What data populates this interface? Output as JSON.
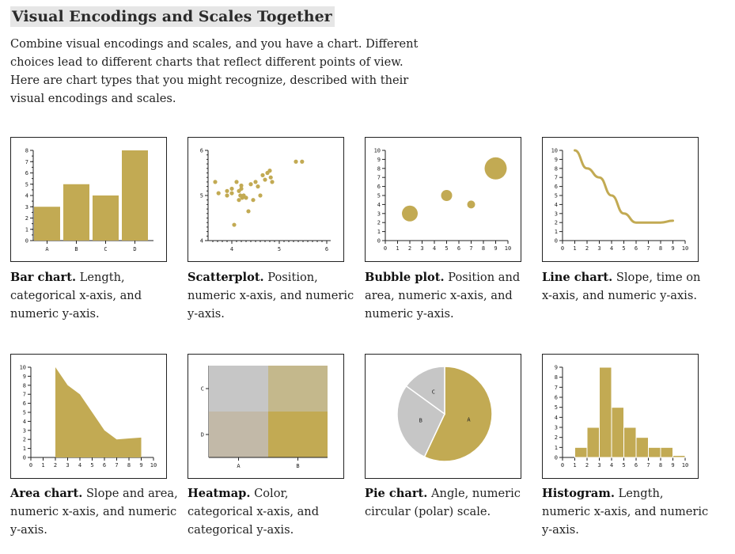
{
  "page": {
    "title": "Visual Encodings and Scales Together",
    "intro": "Combine visual encodings and scales, and you have a chart. Different choices lead to different charts that reflect different points of view. Here are chart types that you might recognize, described with their visual encodings and scales."
  },
  "colors": {
    "mark": "#c2aa53",
    "axis": "#222222",
    "heat_light": "#c6c6c6"
  },
  "cards": [
    {
      "name": "Bar chart.",
      "desc": "Length, categorical x-axis, and numeric y-axis."
    },
    {
      "name": "Scatterplot.",
      "desc": "Position, numeric x-axis, and numeric y-axis."
    },
    {
      "name": "Bubble plot.",
      "desc": "Position and area, numeric x-axis, and numeric y-axis."
    },
    {
      "name": "Line chart.",
      "desc": "Slope, time on x-axis, and numeric y-axis."
    },
    {
      "name": "Area chart.",
      "desc": "Slope and area, numeric x-axis, and numeric y-axis."
    },
    {
      "name": "Heatmap.",
      "desc": "Color, categorical x-axis, and categorical y-axis."
    },
    {
      "name": "Pie chart.",
      "desc": "Angle, numeric circular (polar) scale."
    },
    {
      "name": "Histogram.",
      "desc": "Length, numeric x-axis, and numeric y-axis."
    }
  ],
  "chart_data": [
    {
      "type": "bar",
      "categories": [
        "A",
        "B",
        "C",
        "D"
      ],
      "values": [
        3,
        5,
        4,
        8
      ],
      "ylim": [
        0,
        8
      ]
    },
    {
      "type": "scatter",
      "xlim": [
        3.6,
        6
      ],
      "ylim": [
        4,
        6
      ],
      "points": [
        [
          3.65,
          5.3
        ],
        [
          3.72,
          5.05
        ],
        [
          3.9,
          5.1
        ],
        [
          3.9,
          5.0
        ],
        [
          4.0,
          5.15
        ],
        [
          4.0,
          5.05
        ],
        [
          4.05,
          4.35
        ],
        [
          4.1,
          5.3
        ],
        [
          4.15,
          4.9
        ],
        [
          4.15,
          5.1
        ],
        [
          4.18,
          5.0
        ],
        [
          4.2,
          5.22
        ],
        [
          4.2,
          5.15
        ],
        [
          4.22,
          4.95
        ],
        [
          4.25,
          5.0
        ],
        [
          4.3,
          4.95
        ],
        [
          4.35,
          4.65
        ],
        [
          4.4,
          5.25
        ],
        [
          4.45,
          4.9
        ],
        [
          4.5,
          5.3
        ],
        [
          4.55,
          5.2
        ],
        [
          4.6,
          5.0
        ],
        [
          4.65,
          5.45
        ],
        [
          4.7,
          5.35
        ],
        [
          4.75,
          5.5
        ],
        [
          4.8,
          5.55
        ],
        [
          4.82,
          5.4
        ],
        [
          4.85,
          5.3
        ],
        [
          5.35,
          5.75
        ],
        [
          5.48,
          5.75
        ]
      ]
    },
    {
      "type": "bubble",
      "xlim": [
        0,
        10
      ],
      "ylim": [
        0,
        10
      ],
      "points": [
        [
          2,
          3,
          10
        ],
        [
          5,
          5,
          7
        ],
        [
          7,
          4,
          5
        ],
        [
          9,
          8,
          14
        ]
      ]
    },
    {
      "type": "line",
      "x": [
        1,
        2,
        3,
        4,
        5,
        6,
        7,
        8,
        9
      ],
      "y": [
        10,
        8,
        7,
        5,
        3,
        2,
        2,
        2,
        2.2
      ],
      "xlim": [
        0,
        10
      ],
      "ylim": [
        0,
        10
      ]
    },
    {
      "type": "area",
      "x": [
        2,
        3,
        4,
        5,
        6,
        7,
        8,
        9
      ],
      "y": [
        10,
        8,
        7,
        5,
        3,
        2,
        2.1,
        2.2
      ],
      "xlim": [
        0,
        10
      ],
      "ylim": [
        0,
        10
      ]
    },
    {
      "type": "heatmap",
      "x_categories": [
        "A",
        "B"
      ],
      "y_categories": [
        "C",
        "D"
      ],
      "cells": [
        [
          "#c6c6c6",
          "#c4b88c"
        ],
        [
          "#c2b9a8",
          "#c2aa53"
        ]
      ]
    },
    {
      "type": "pie",
      "slices": [
        {
          "label": "A",
          "value": 57
        },
        {
          "label": "B",
          "value": 28
        },
        {
          "label": "C",
          "value": 15
        }
      ]
    },
    {
      "type": "histogram",
      "bins": [
        0,
        1,
        2,
        3,
        4,
        5,
        6,
        7,
        8,
        9,
        10
      ],
      "counts": [
        0,
        1,
        3,
        9,
        5,
        3,
        2,
        1,
        1,
        0.2
      ],
      "ylim": [
        0,
        9
      ]
    }
  ]
}
